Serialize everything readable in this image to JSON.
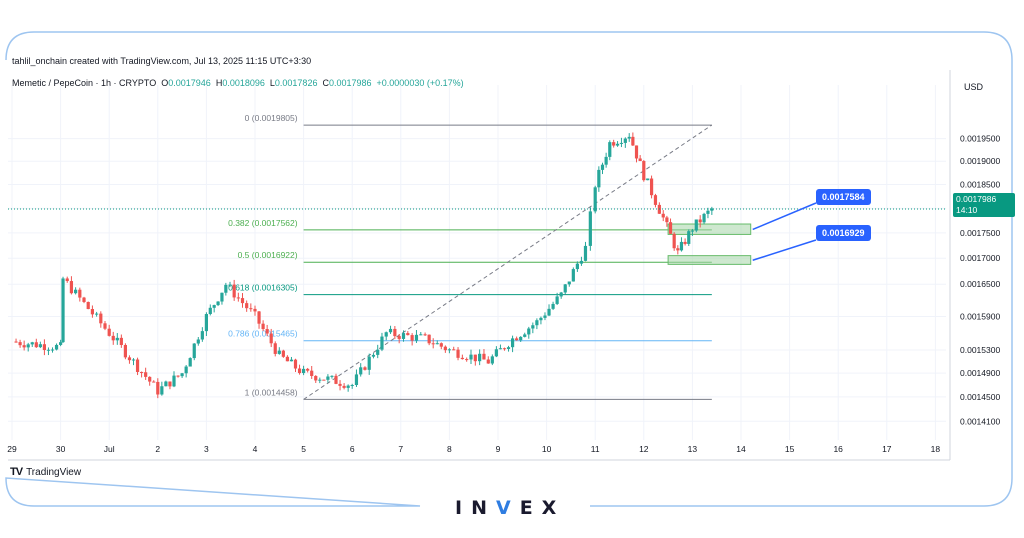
{
  "header": {
    "credit": "tahlil_onchain created with TradingView.com, Jul 13, 2025 11:15 UTC+3:30",
    "symbol": "Memetic / PepeCoin · 1h · CRYPTO",
    "o_label": "O",
    "o_value": "0.0017946",
    "h_label": "H",
    "h_value": "0.0018096",
    "l_label": "L",
    "l_value": "0.0017826",
    "c_label": "C",
    "c_value": "0.0017986",
    "change": "+0.0000030 (+0.17%)"
  },
  "axis": {
    "currency": "USD"
  },
  "last_price": {
    "value": "0.0017986",
    "countdown": "14:10"
  },
  "callouts": {
    "upper": "0.0017584",
    "lower": "0.0016929"
  },
  "branding": {
    "tradingview": "TradingView",
    "brand_left": "IN",
    "brand_v": "V",
    "brand_right": "EX"
  },
  "colors": {
    "up": "#26a69a",
    "down": "#ef5350",
    "zone": "#a5d6a7",
    "callout": "#2962ff",
    "frame": "#9ec5f0"
  },
  "chart_data": {
    "type": "candlestick",
    "scale": "log",
    "x_ticks": [
      "29",
      "30",
      "Jul",
      "2",
      "3",
      "4",
      "5",
      "6",
      "7",
      "8",
      "9",
      "10",
      "11",
      "12",
      "13",
      "14",
      "15",
      "16",
      "17",
      "18"
    ],
    "y_ticks": [
      "0.0019500",
      "0.0019000",
      "0.0018500",
      "0.0018000",
      "0.0017500",
      "0.0017000",
      "0.0016500",
      "0.0015900",
      "0.0015300",
      "0.0014900",
      "0.0014500",
      "0.0014100"
    ],
    "ylim": [
      0.00138,
      0.00205
    ],
    "fib_levels": [
      {
        "label": "0 (0.0019805)",
        "value": 0.0019805
      },
      {
        "label": "0.382 (0.0017562)",
        "value": 0.0017562
      },
      {
        "label": "0.5 (0.0016922)",
        "value": 0.0016922
      },
      {
        "label": "0.618 (0.0016305)",
        "value": 0.0016305
      },
      {
        "label": "0.786 (0.0015465)",
        "value": 0.0015465
      },
      {
        "label": "1 (0.0014458)",
        "value": 0.0014458
      }
    ],
    "zones": [
      {
        "low": 0.001747,
        "high": 0.001768
      },
      {
        "low": 0.001688,
        "high": 0.001705
      }
    ],
    "key_points": [
      {
        "x": "29",
        "price": 0.001545
      },
      {
        "x": "30",
        "price": 0.001535
      },
      {
        "x": "30.1",
        "price": 0.00166
      },
      {
        "x": "Jul",
        "price": 0.00156
      },
      {
        "x": "2",
        "price": 0.00146
      },
      {
        "x": "2.5",
        "price": 0.00149
      },
      {
        "x": "3",
        "price": 0.00159
      },
      {
        "x": "3.4",
        "price": 0.00165
      },
      {
        "x": "4",
        "price": 0.00159
      },
      {
        "x": "4.5",
        "price": 0.00152
      },
      {
        "x": "5",
        "price": 0.00149
      },
      {
        "x": "6",
        "price": 0.00147
      },
      {
        "x": "6.7",
        "price": 0.00156
      },
      {
        "x": "7.5",
        "price": 0.00155
      },
      {
        "x": "8",
        "price": 0.00153
      },
      {
        "x": "8.8",
        "price": 0.00151
      },
      {
        "x": "9.3",
        "price": 0.00155
      },
      {
        "x": "9.8",
        "price": 0.00158
      },
      {
        "x": "10.3",
        "price": 0.00163
      },
      {
        "x": "10.8",
        "price": 0.00172
      },
      {
        "x": "11",
        "price": 0.00185
      },
      {
        "x": "11.3",
        "price": 0.00194
      },
      {
        "x": "11.7",
        "price": 0.00196
      },
      {
        "x": "12",
        "price": 0.00187
      },
      {
        "x": "12.4",
        "price": 0.00178
      },
      {
        "x": "12.7",
        "price": 0.00171
      },
      {
        "x": "13",
        "price": 0.00176
      },
      {
        "x": "13.4",
        "price": 0.0017986
      }
    ]
  }
}
